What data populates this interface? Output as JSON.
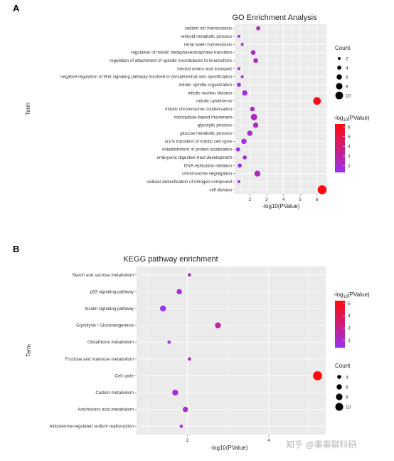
{
  "watermark": "知乎 @事事聊科研",
  "chart_data": [
    {
      "panel_label": "A",
      "type": "scatter",
      "title": "GO Enrichment Analysis",
      "xlabel": "-log10(PValue)",
      "ylabel": "Term",
      "xlim": [
        1.1,
        6.6
      ],
      "xticks": [
        2,
        3,
        4,
        5,
        6
      ],
      "grid": true,
      "categories": [
        "sodium ion homeostasis",
        "retinoid metabolic process",
        "renal water homeostasis",
        "regulation of mitotic metaphase/anaphase transition",
        "regulation of attachment of spindle microtubules to kinetochore",
        "neutral amino acid transport",
        "negative regulation of Wnt signaling pathway involved in dorsal/ventral axis specification",
        "mitotic spindle organization",
        "mitotic nuclear division",
        "mitotic cytokinesis",
        "mitotic chromosome condensation",
        "microtubule-based movement",
        "glycolytic process",
        "glucose metabolic process",
        "G1/S transition of mitotic cell cycle",
        "establishment of protein localization",
        "embryonic digestive tract development",
        "DNA replication initiation",
        "chromosome segregation",
        "cellular detoxification of nitrogen compound",
        "cell division"
      ],
      "series": [
        {
          "x": [
            2.5,
            1.35,
            1.55,
            2.2,
            2.35,
            1.35,
            1.55,
            1.35,
            1.7,
            6.0,
            2.15,
            2.25,
            2.35,
            2.0,
            1.65,
            1.3,
            1.7,
            1.4,
            2.45,
            1.35,
            6.3
          ],
          "count": [
            4,
            2,
            2,
            5,
            5,
            2,
            2,
            4,
            6,
            10,
            5,
            8,
            6,
            6,
            6,
            4,
            4,
            4,
            7,
            2,
            12
          ],
          "color_value": [
            2.5,
            1.35,
            1.55,
            2.2,
            2.35,
            1.35,
            1.55,
            1.35,
            1.7,
            6.0,
            2.15,
            2.25,
            2.35,
            2.0,
            1.65,
            1.3,
            1.7,
            1.4,
            2.45,
            1.35,
            6.3
          ]
        }
      ],
      "legend_placement": "right",
      "size_legend": {
        "title": "Count",
        "values": [
          2,
          4,
          6,
          8,
          10
        ]
      },
      "color_legend": {
        "title_prefix": "-log",
        "title_sub": "10",
        "title_suffix": "(PValue)",
        "ticks": [
          6,
          5,
          4,
          3,
          2
        ],
        "range": [
          1.3,
          6.3
        ],
        "colors": [
          "#9b30f0",
          "#ff0a0a"
        ]
      }
    },
    {
      "panel_label": "B",
      "type": "scatter",
      "title": "KEGG pathway enrichment",
      "xlabel": "-log10(PValue)",
      "ylabel": "Term",
      "xlim": [
        0.75,
        5.4
      ],
      "xticks": [
        2,
        4
      ],
      "grid": true,
      "categories": [
        "Starch and sucrose metabolism",
        "p53 signaling pathway",
        "Insulin signaling pathway",
        "Glycolysis / Gluconeogenesis",
        "Glutathione metabolism",
        "Fructose and mannose metabolism",
        "Cell cycle",
        "Carbon metabolism",
        "Arachidonic acid metabolism",
        "Aldosterone-regulated sodium reabsorption"
      ],
      "series": [
        {
          "x": [
            2.05,
            1.8,
            1.4,
            2.75,
            1.55,
            2.05,
            5.2,
            1.7,
            1.95,
            1.85
          ],
          "count": [
            3,
            6,
            7,
            7,
            3,
            3,
            12,
            7,
            6,
            3
          ],
          "color_value": [
            2.05,
            1.8,
            1.4,
            2.75,
            1.55,
            2.05,
            5.2,
            1.7,
            1.95,
            1.85
          ]
        }
      ],
      "legend_placement": "right",
      "size_legend": {
        "title": "Count",
        "values": [
          4,
          6,
          8,
          10
        ]
      },
      "color_legend": {
        "title_prefix": "-log",
        "title_sub": "10",
        "title_suffix": "(PValue)",
        "ticks": [
          5,
          4,
          3,
          2
        ],
        "range": [
          1.4,
          5.2
        ],
        "colors": [
          "#9b30f0",
          "#ff0a0a"
        ]
      }
    }
  ]
}
